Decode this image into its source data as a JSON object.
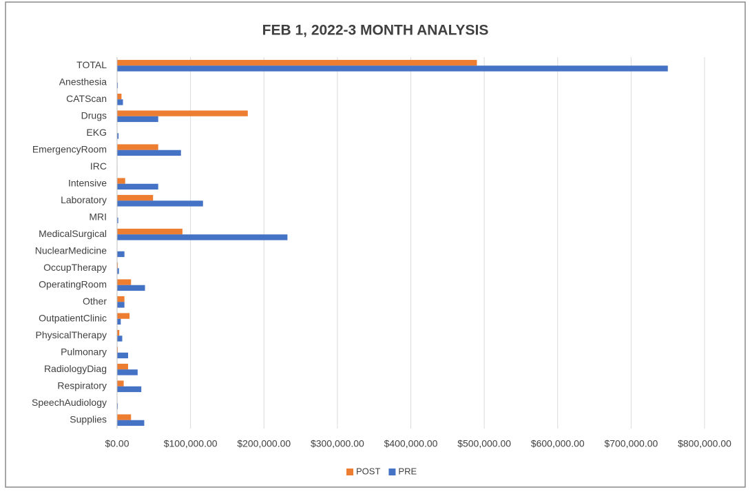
{
  "chart_data": {
    "type": "bar",
    "orientation": "horizontal",
    "title": "FEB 1, 2022-3 MONTH ANALYSIS",
    "categories": [
      "TOTAL",
      "Anesthesia",
      "CATScan",
      "Drugs",
      "EKG",
      "EmergencyRoom",
      "IRC",
      "Intensive",
      "Laboratory",
      "MRI",
      "MedicalSurgical",
      "NuclearMedicine",
      "OccupTherapy",
      "OperatingRoom",
      "Other",
      "OutpatientClinic",
      "PhysicalTherapy",
      "Pulmonary",
      "RadiologyDiag",
      "Respiratory",
      "SpeechAudiology",
      "Supplies"
    ],
    "series": [
      {
        "name": "POST",
        "color": "#ed7d31",
        "values": [
          490000,
          500,
          6000,
          178000,
          0,
          56000,
          0,
          11000,
          49000,
          500,
          89000,
          0,
          1000,
          19000,
          10000,
          17000,
          3000,
          1000,
          15000,
          9000,
          500,
          19000
        ]
      },
      {
        "name": "PRE",
        "color": "#4472c4",
        "values": [
          750000,
          1000,
          8000,
          56000,
          2000,
          87000,
          500,
          56000,
          117000,
          1500,
          232000,
          10000,
          2500,
          38000,
          10000,
          5000,
          7000,
          15000,
          28000,
          33000,
          1000,
          37000
        ]
      }
    ],
    "xlim": [
      0,
      800000
    ],
    "xticks": [
      {
        "value": 0,
        "label": "$0.00"
      },
      {
        "value": 100000,
        "label": "$100,000.00"
      },
      {
        "value": 200000,
        "label": "$200,000.00"
      },
      {
        "value": 300000,
        "label": "$300,000.00"
      },
      {
        "value": 400000,
        "label": "$400,000.00"
      },
      {
        "value": 500000,
        "label": "$500,000.00"
      },
      {
        "value": 600000,
        "label": "$600,000.00"
      },
      {
        "value": 700000,
        "label": "$700,000.00"
      },
      {
        "value": 800000,
        "label": "$800,000.00"
      }
    ],
    "grid": true,
    "legend": "bottom"
  }
}
